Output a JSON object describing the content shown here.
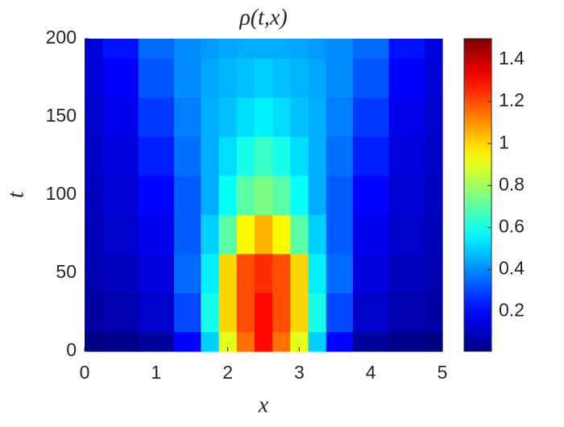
{
  "chart_data": {
    "type": "heatmap",
    "title": "ρ(t,x)",
    "x_label": "x",
    "y_label": "t",
    "x": [
      0,
      0.5,
      1,
      1.5,
      1.75,
      2,
      2.25,
      2.5,
      2.75,
      3,
      3.25,
      3.5,
      4,
      4.5,
      5
    ],
    "y": [
      0,
      25,
      50,
      75,
      100,
      125,
      150,
      175,
      200
    ],
    "z": [
      [
        0.01,
        0.02,
        0.05,
        0.2,
        0.5,
        0.9,
        1.15,
        1.3,
        1.15,
        0.9,
        0.5,
        0.2,
        0.05,
        0.02,
        0.01
      ],
      [
        0.06,
        0.08,
        0.12,
        0.3,
        0.6,
        1.0,
        1.2,
        1.3,
        1.2,
        1.0,
        0.6,
        0.3,
        0.12,
        0.08,
        0.06
      ],
      [
        0.08,
        0.1,
        0.15,
        0.35,
        0.55,
        1.0,
        1.2,
        1.25,
        1.2,
        1.0,
        0.55,
        0.35,
        0.15,
        0.1,
        0.08
      ],
      [
        0.09,
        0.12,
        0.17,
        0.33,
        0.5,
        0.7,
        0.95,
        1.05,
        0.95,
        0.7,
        0.5,
        0.33,
        0.17,
        0.12,
        0.09
      ],
      [
        0.1,
        0.13,
        0.2,
        0.33,
        0.45,
        0.58,
        0.7,
        0.75,
        0.7,
        0.58,
        0.45,
        0.33,
        0.2,
        0.13,
        0.1
      ],
      [
        0.11,
        0.15,
        0.24,
        0.36,
        0.45,
        0.52,
        0.6,
        0.65,
        0.6,
        0.52,
        0.45,
        0.36,
        0.24,
        0.15,
        0.11
      ],
      [
        0.12,
        0.17,
        0.28,
        0.38,
        0.45,
        0.48,
        0.52,
        0.55,
        0.52,
        0.48,
        0.45,
        0.38,
        0.28,
        0.17,
        0.12
      ],
      [
        0.13,
        0.19,
        0.32,
        0.4,
        0.44,
        0.46,
        0.48,
        0.5,
        0.48,
        0.46,
        0.44,
        0.4,
        0.32,
        0.19,
        0.13
      ],
      [
        0.14,
        0.22,
        0.35,
        0.4,
        0.42,
        0.44,
        0.45,
        0.45,
        0.45,
        0.44,
        0.42,
        0.4,
        0.35,
        0.22,
        0.14
      ]
    ],
    "xlim": [
      0,
      5
    ],
    "xticks": [
      0,
      1,
      2,
      3,
      4,
      5
    ],
    "ylim": [
      0,
      200
    ],
    "yticks": [
      0,
      50,
      100,
      150,
      200
    ],
    "colormap": "jet",
    "clim": [
      0.01,
      1.5
    ],
    "cticks": [
      0.2,
      0.4,
      0.6,
      0.8,
      1,
      1.2,
      1.4
    ]
  }
}
